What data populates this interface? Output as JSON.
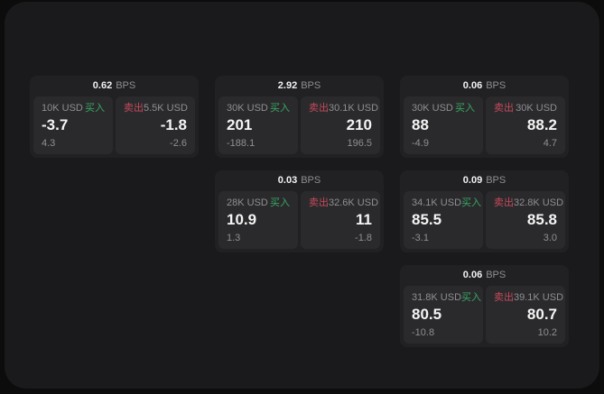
{
  "labels": {
    "bps_unit": "BPS",
    "buy": "买入",
    "sell": "卖出"
  },
  "colors": {
    "outer_bg": "#0c0c0c",
    "panel_bg": "#1a1a1c",
    "card_bg": "#212123",
    "tile_bg": "#2a2a2c",
    "text_primary": "#f2f2f3",
    "text_muted": "#8f8f93",
    "buy_green": "#3aa864",
    "sell_red": "#c6495c"
  },
  "cards": [
    {
      "bps": "0.62",
      "col": 1,
      "row": 1,
      "buy": {
        "amount": "10K USD",
        "price": "-3.7",
        "delta": "4.3"
      },
      "sell": {
        "amount": "5.5K USD",
        "price": "-1.8",
        "delta": "-2.6"
      }
    },
    {
      "bps": "2.92",
      "col": 2,
      "row": 1,
      "buy": {
        "amount": "30K USD",
        "price": "201",
        "delta": "-188.1"
      },
      "sell": {
        "amount": "30.1K USD",
        "price": "210",
        "delta": "196.5"
      }
    },
    {
      "bps": "0.06",
      "col": 3,
      "row": 1,
      "buy": {
        "amount": "30K USD",
        "price": "88",
        "delta": "-4.9"
      },
      "sell": {
        "amount": "30K USD",
        "price": "88.2",
        "delta": "4.7"
      }
    },
    {
      "bps": "0.03",
      "col": 2,
      "row": 2,
      "buy": {
        "amount": "28K USD",
        "price": "10.9",
        "delta": "1.3"
      },
      "sell": {
        "amount": "32.6K USD",
        "price": "11",
        "delta": "-1.8"
      }
    },
    {
      "bps": "0.09",
      "col": 3,
      "row": 2,
      "buy": {
        "amount": "34.1K USD",
        "price": "85.5",
        "delta": "-3.1"
      },
      "sell": {
        "amount": "32.8K USD",
        "price": "85.8",
        "delta": "3.0"
      }
    },
    {
      "bps": "0.06",
      "col": 3,
      "row": 3,
      "buy": {
        "amount": "31.8K USD",
        "price": "80.5",
        "delta": "-10.8"
      },
      "sell": {
        "amount": "39.1K USD",
        "price": "80.7",
        "delta": "10.2"
      }
    }
  ]
}
